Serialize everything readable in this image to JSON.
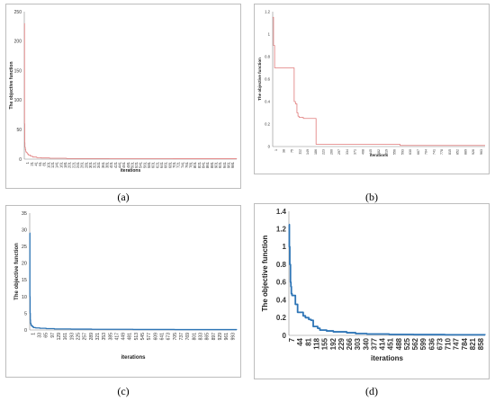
{
  "figure": {
    "captions": [
      "(a)",
      "(b)",
      "(c)",
      "(d)"
    ]
  },
  "chart_data": [
    {
      "id": "a",
      "type": "line",
      "ylabel": "The objective function",
      "xlabel": "iterations",
      "ylim": [
        0,
        250
      ],
      "yticks": [
        "0",
        "50",
        "100",
        "150",
        "200",
        "250"
      ],
      "xticks": [
        "1",
        "21",
        "41",
        "61",
        "81",
        "101",
        "121",
        "141",
        "161",
        "181",
        "201",
        "221",
        "241",
        "261",
        "281",
        "301",
        "321",
        "341",
        "361",
        "381",
        "401",
        "421",
        "441",
        "461",
        "481",
        "501",
        "521",
        "541",
        "561",
        "581",
        "601",
        "621",
        "641",
        "661",
        "681",
        "701",
        "721",
        "741",
        "761",
        "781",
        "801",
        "821",
        "841",
        "861",
        "881",
        "901",
        "921",
        "941",
        "961",
        "981"
      ],
      "xlim": [
        1,
        1000
      ],
      "grid": false,
      "color": "#e07a7a",
      "series": [
        {
          "x": [
            1,
            2,
            3,
            4,
            6,
            8,
            10,
            15,
            20,
            30,
            40,
            60,
            80,
            120,
            200,
            400,
            700,
            1000
          ],
          "y": [
            230,
            60,
            28,
            20,
            16,
            13,
            11,
            9,
            7,
            5,
            3.5,
            2.5,
            2,
            1.5,
            1,
            0.8,
            0.7,
            0.6
          ]
        }
      ]
    },
    {
      "id": "b",
      "type": "line",
      "ylabel": "The objective function",
      "xlabel": "iterations",
      "ylim": [
        0,
        1.2
      ],
      "yticks": [
        "0",
        "0.2",
        "0.4",
        "0.6",
        "0.8",
        "1",
        "1.2"
      ],
      "xticks": [
        "1",
        "38",
        "75",
        "112",
        "149",
        "186",
        "223",
        "260",
        "297",
        "334",
        "371",
        "408",
        "445",
        "482",
        "519",
        "556",
        "593",
        "630",
        "667",
        "704",
        "741",
        "778",
        "815",
        "852",
        "889",
        "926",
        "963"
      ],
      "xlim": [
        1,
        1000
      ],
      "grid": false,
      "color": "#e07a7a",
      "series": [
        {
          "x": [
            1,
            5,
            10,
            15,
            20,
            25,
            30,
            35,
            40,
            60,
            90,
            100,
            102,
            108,
            115,
            120,
            125,
            135,
            145,
            200,
            205,
            560,
            600,
            1000
          ],
          "y": [
            1.15,
            0.9,
            0.7,
            0.7,
            0.7,
            0.7,
            0.7,
            0.7,
            0.7,
            0.7,
            0.7,
            0.7,
            0.4,
            0.38,
            0.3,
            0.27,
            0.26,
            0.26,
            0.25,
            0.25,
            0.02,
            0.02,
            0.01,
            0.01
          ]
        }
      ]
    },
    {
      "id": "c",
      "type": "line",
      "ylabel": "The objective function",
      "xlabel": "iterations",
      "ylim": [
        0,
        35
      ],
      "yticks": [
        "0",
        "5",
        "10",
        "15",
        "20",
        "25",
        "30",
        "35"
      ],
      "xticks": [
        "1",
        "33",
        "65",
        "97",
        "129",
        "161",
        "193",
        "225",
        "257",
        "289",
        "321",
        "353",
        "385",
        "417",
        "449",
        "481",
        "513",
        "545",
        "577",
        "609",
        "641",
        "673",
        "705",
        "737",
        "769",
        "801",
        "833",
        "865",
        "897",
        "929",
        "961",
        "993"
      ],
      "xlim": [
        1,
        1000
      ],
      "grid": false,
      "color": "#2e75b6",
      "series": [
        {
          "x": [
            1,
            2,
            3,
            4,
            5,
            7,
            10,
            15,
            20,
            30,
            50,
            80,
            120,
            200,
            300,
            500,
            700,
            1000
          ],
          "y": [
            29,
            10,
            5,
            3,
            2,
            1.5,
            1.2,
            0.9,
            0.7,
            0.6,
            0.5,
            0.4,
            0.3,
            0.25,
            0.2,
            0.15,
            0.12,
            0.1
          ]
        }
      ]
    },
    {
      "id": "d",
      "type": "line",
      "ylabel": "The objective function",
      "xlabel": "iterations",
      "ylim": [
        0,
        1.4
      ],
      "yticks": [
        "0",
        "0.2",
        "0.4",
        "0.6",
        "0.8",
        "1",
        "1.2",
        "1.4"
      ],
      "xticks": [
        "7",
        "44",
        "81",
        "118",
        "155",
        "192",
        "229",
        "266",
        "303",
        "340",
        "377",
        "414",
        "451",
        "488",
        "525",
        "562",
        "599",
        "636",
        "673",
        "710",
        "747",
        "784",
        "821",
        "858"
      ],
      "xlim": [
        1,
        880
      ],
      "grid": false,
      "color": "#2e75b6",
      "series": [
        {
          "x": [
            1,
            3,
            5,
            8,
            10,
            12,
            15,
            25,
            30,
            40,
            60,
            65,
            75,
            90,
            100,
            110,
            130,
            140,
            170,
            200,
            260,
            300,
            350,
            450,
            560,
            700,
            880
          ],
          "y": [
            1.25,
            1.0,
            0.8,
            0.6,
            0.55,
            0.47,
            0.45,
            0.45,
            0.35,
            0.26,
            0.26,
            0.22,
            0.2,
            0.18,
            0.17,
            0.1,
            0.08,
            0.06,
            0.05,
            0.04,
            0.03,
            0.02,
            0.015,
            0.01,
            0.008,
            0.006,
            0.005
          ]
        }
      ]
    }
  ]
}
